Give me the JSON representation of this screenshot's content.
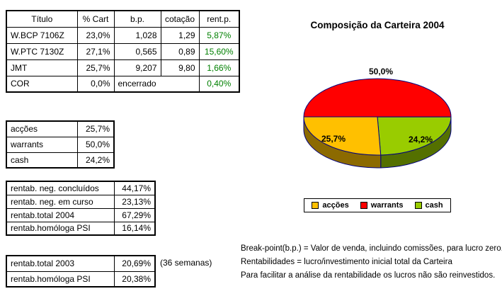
{
  "main_table": {
    "headers": [
      "Título",
      "% Cart",
      "b.p.",
      "cotação",
      "rent.p."
    ],
    "rows": [
      {
        "titulo": "W.BCP 7106Z",
        "cart": "23,0%",
        "bp": "1,028",
        "cot": "1,29",
        "rentp": "5,87%"
      },
      {
        "titulo": "W.PTC 7130Z",
        "cart": "27,1%",
        "bp": "0,565",
        "cot": "0,89",
        "rentp": "15,60%"
      },
      {
        "titulo": "JMT",
        "cart": "25,7%",
        "bp": "9,207",
        "cot": "9,80",
        "rentp": "1,66%"
      },
      {
        "titulo": "COR",
        "cart": "0,0%",
        "bp": "encerrado",
        "rentp": "0,40%"
      }
    ]
  },
  "allocation_table": {
    "rows": [
      {
        "label": "acções",
        "value": "25,7%"
      },
      {
        "label": "warrants",
        "value": "50,0%"
      },
      {
        "label": "cash",
        "value": "24,2%"
      }
    ]
  },
  "returns_2004_table": {
    "rows": [
      {
        "label": "rentab. neg. concluídos",
        "value": "44,17%"
      },
      {
        "label": "rentab. neg. em curso",
        "value": "23,13%"
      },
      {
        "label": "rentab.total 2004",
        "value": "67,29%"
      },
      {
        "label": "rentab.homóloga PSI",
        "value": "16,14%"
      }
    ]
  },
  "returns_2003_table": {
    "rows": [
      {
        "label": "rentab.total 2003",
        "value": "20,69%"
      },
      {
        "label": "rentab.homóloga PSI",
        "value": "20,38%"
      }
    ],
    "note": "(36 semanas)"
  },
  "chart_data": {
    "type": "pie",
    "style": "3d",
    "title": "Composição da Carteira 2004",
    "labels": [
      "warrants",
      "cash",
      "acções"
    ],
    "values": [
      50.0,
      24.2,
      25.7
    ],
    "slice_labels": [
      "50,0%",
      "24,2%",
      "25,7%"
    ],
    "colors": [
      "#FF0000",
      "#99CC00",
      "#FFC000"
    ],
    "start_angle_deg": 180,
    "direction": "clockwise",
    "legend_position": "bottom",
    "legend": [
      "acções",
      "warrants",
      "cash"
    ],
    "legend_colors": [
      "#FFC000",
      "#FF0000",
      "#99CC00"
    ],
    "outline_color": "#000080"
  },
  "notes": [
    "Break-point(b.p.) = Valor de venda, incluindo comissões, para lucro zero.",
    "Rentabilidades = lucro/investimento inicial total da Carteira",
    "Para facilitar a análise da rentabilidade os lucros não são reinvestidos."
  ]
}
